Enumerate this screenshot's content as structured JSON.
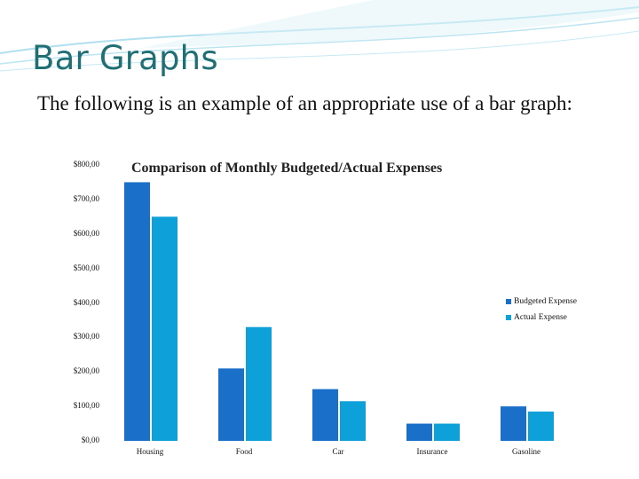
{
  "slide": {
    "title": "Bar Graphs",
    "body": "The following is an example of an appropriate use of a bar graph:"
  },
  "colors": {
    "title": "#1f6f75",
    "budgeted": "#1a6fc9",
    "actual": "#0ea0d8",
    "decor": "#8fd3e8"
  },
  "chart_data": {
    "type": "bar",
    "title": "Comparison of Monthly Budgeted/Actual Expenses",
    "categories": [
      "Housing",
      "Food",
      "Car",
      "Insurance",
      "Gasoline"
    ],
    "series": [
      {
        "name": "Budgeted Expense",
        "color": "#1a6fc9",
        "values": [
          750,
          210,
          150,
          50,
          100
        ]
      },
      {
        "name": "Actual Expense",
        "color": "#0ea0d8",
        "values": [
          650,
          330,
          115,
          50,
          85
        ]
      }
    ],
    "y_ticks": [
      "$0,00",
      "$100,00",
      "$200,00",
      "$300,00",
      "$400,00",
      "$500,00",
      "$600,00",
      "$700,00",
      "$800,00"
    ],
    "ylim": [
      0,
      800
    ],
    "grid": false,
    "legend_position": "right"
  }
}
